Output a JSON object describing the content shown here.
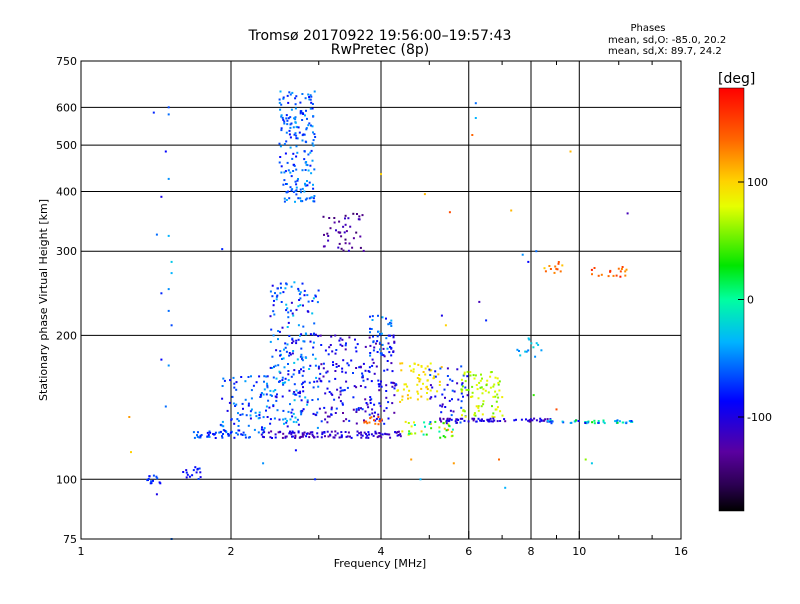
{
  "chart_data": {
    "type": "scatter",
    "title": "Tromsø 20170922 19:56:00–19:57:43",
    "subtitle": "RwPretec (8p)",
    "xlabel": "Frequency [MHz]",
    "ylabel": "Stationary phase Virtual Height [km]",
    "x_scale": "log",
    "y_scale": "log",
    "xlim": [
      1,
      16
    ],
    "ylim": [
      75,
      750
    ],
    "x_ticks": [
      1,
      2,
      4,
      6,
      8,
      10,
      16
    ],
    "x_tick_labels": [
      "1",
      "2",
      "4",
      "6",
      "8",
      "10",
      "16"
    ],
    "x_minor_ticks": [
      3,
      5,
      7,
      9,
      12,
      14
    ],
    "y_ticks": [
      75,
      100,
      200,
      300,
      400,
      500,
      600,
      750
    ],
    "y_tick_labels": [
      "75",
      "100",
      "200",
      "300",
      "400",
      "500",
      "600",
      "750"
    ],
    "grid": true,
    "phase_info": {
      "heading": "Phases",
      "line_o": "mean, sd,O: -85.0, 20.2",
      "line_x": "mean, sd,X:  89.7, 24.2"
    },
    "colorbar": {
      "unit": "[deg]",
      "tick_values": [
        100,
        0,
        -100
      ],
      "tick_labels": [
        "100",
        "0",
        "-100"
      ],
      "range": [
        -180,
        180
      ],
      "colormap": "rainbow (black-purple-blue-cyan-green-yellow-red)"
    },
    "clusters": [
      {
        "x": [
          1.35,
          1.45
        ],
        "y": [
          98,
          102
        ],
        "phase": [
          -100,
          -60
        ],
        "n": 14
      },
      {
        "x": [
          1.6,
          1.75
        ],
        "y": [
          100,
          106
        ],
        "phase": [
          -100,
          -70
        ],
        "n": 16
      },
      {
        "x": [
          1.65,
          2.2
        ],
        "y": [
          122,
          126
        ],
        "phase": [
          -90,
          -50
        ],
        "n": 45
      },
      {
        "x": [
          1.9,
          2.4
        ],
        "y": [
          125,
          165
        ],
        "phase": [
          -100,
          -40
        ],
        "n": 90
      },
      {
        "x": [
          2.4,
          3.0
        ],
        "y": [
          128,
          260
        ],
        "phase": [
          -110,
          -30
        ],
        "n": 230
      },
      {
        "x": [
          2.5,
          2.95
        ],
        "y": [
          380,
          650
        ],
        "phase": [
          -90,
          -40
        ],
        "n": 190
      },
      {
        "x": [
          2.3,
          4.4
        ],
        "y": [
          122,
          126
        ],
        "phase": [
          -130,
          -90
        ],
        "n": 120
      },
      {
        "x": [
          3.0,
          4.3
        ],
        "y": [
          130,
          200
        ],
        "phase": [
          -130,
          -70
        ],
        "n": 200
      },
      {
        "x": [
          3.05,
          3.7
        ],
        "y": [
          300,
          360
        ],
        "phase": [
          -150,
          -110
        ],
        "n": 45
      },
      {
        "x": [
          3.8,
          4.2
        ],
        "y": [
          180,
          220
        ],
        "phase": [
          -90,
          -40
        ],
        "n": 40
      },
      {
        "x": [
          3.7,
          4.1
        ],
        "y": [
          130,
          135
        ],
        "phase": [
          130,
          160
        ],
        "n": 14
      },
      {
        "x": [
          4.3,
          5.3
        ],
        "y": [
          145,
          175
        ],
        "phase": [
          80,
          110
        ],
        "n": 60
      },
      {
        "x": [
          4.4,
          5.6
        ],
        "y": [
          122,
          132
        ],
        "phase": [
          -20,
          120
        ],
        "n": 40
      },
      {
        "x": [
          5.0,
          6.0
        ],
        "y": [
          130,
          175
        ],
        "phase": [
          -120,
          -60
        ],
        "n": 50
      },
      {
        "x": [
          5.8,
          7.1
        ],
        "y": [
          135,
          168
        ],
        "phase": [
          50,
          90
        ],
        "n": 80
      },
      {
        "x": [
          5.2,
          8.8
        ],
        "y": [
          132,
          134
        ],
        "phase": [
          -130,
          -90
        ],
        "n": 70
      },
      {
        "x": [
          8.6,
          12.8
        ],
        "y": [
          131,
          133
        ],
        "phase": [
          -100,
          30
        ],
        "n": 45
      },
      {
        "x": [
          8.5,
          9.3
        ],
        "y": [
          270,
          285
        ],
        "phase": [
          100,
          160
        ],
        "n": 12
      },
      {
        "x": [
          10.5,
          12.5
        ],
        "y": [
          265,
          280
        ],
        "phase": [
          120,
          170
        ],
        "n": 18
      },
      {
        "x": [
          7.5,
          8.4
        ],
        "y": [
          180,
          200
        ],
        "phase": [
          -60,
          -20
        ],
        "n": 14
      }
    ],
    "points": [
      {
        "x": 1.4,
        "y": 585,
        "phase": -80
      },
      {
        "x": 1.5,
        "y": 580,
        "phase": -60
      },
      {
        "x": 1.5,
        "y": 600,
        "phase": -70
      },
      {
        "x": 1.48,
        "y": 485,
        "phase": -90
      },
      {
        "x": 1.5,
        "y": 425,
        "phase": -50
      },
      {
        "x": 1.45,
        "y": 390,
        "phase": -100
      },
      {
        "x": 1.42,
        "y": 325,
        "phase": -60
      },
      {
        "x": 1.5,
        "y": 323,
        "phase": -40
      },
      {
        "x": 1.52,
        "y": 285,
        "phase": -30
      },
      {
        "x": 1.52,
        "y": 270,
        "phase": -40
      },
      {
        "x": 1.5,
        "y": 250,
        "phase": -50
      },
      {
        "x": 1.45,
        "y": 245,
        "phase": -80
      },
      {
        "x": 1.5,
        "y": 225,
        "phase": -60
      },
      {
        "x": 1.52,
        "y": 210,
        "phase": -70
      },
      {
        "x": 1.5,
        "y": 173,
        "phase": -50
      },
      {
        "x": 1.45,
        "y": 178,
        "phase": -90
      },
      {
        "x": 1.48,
        "y": 142,
        "phase": -60
      },
      {
        "x": 1.52,
        "y": 75,
        "phase": -60
      },
      {
        "x": 1.42,
        "y": 93,
        "phase": -100
      },
      {
        "x": 1.25,
        "y": 135,
        "phase": 120
      },
      {
        "x": 1.26,
        "y": 114,
        "phase": 100
      },
      {
        "x": 1.92,
        "y": 303,
        "phase": -80
      },
      {
        "x": 2.32,
        "y": 108,
        "phase": -50
      },
      {
        "x": 2.95,
        "y": 100,
        "phase": -80
      },
      {
        "x": 2.7,
        "y": 115,
        "phase": -90
      },
      {
        "x": 4.0,
        "y": 435,
        "phase": 100
      },
      {
        "x": 4.9,
        "y": 395,
        "phase": 110
      },
      {
        "x": 5.5,
        "y": 362,
        "phase": 150
      },
      {
        "x": 6.2,
        "y": 612,
        "phase": -60
      },
      {
        "x": 6.1,
        "y": 525,
        "phase": 140
      },
      {
        "x": 6.2,
        "y": 570,
        "phase": -40
      },
      {
        "x": 7.3,
        "y": 365,
        "phase": 110
      },
      {
        "x": 9.6,
        "y": 485,
        "phase": 110
      },
      {
        "x": 12.5,
        "y": 360,
        "phase": -120
      },
      {
        "x": 7.9,
        "y": 285,
        "phase": -90
      },
      {
        "x": 8.2,
        "y": 300,
        "phase": -60
      },
      {
        "x": 7.7,
        "y": 295,
        "phase": -50
      },
      {
        "x": 6.9,
        "y": 110,
        "phase": 140
      },
      {
        "x": 7.1,
        "y": 96,
        "phase": -40
      },
      {
        "x": 8.1,
        "y": 150,
        "phase": 40
      },
      {
        "x": 10.3,
        "y": 110,
        "phase": 60
      },
      {
        "x": 10.6,
        "y": 108,
        "phase": -30
      },
      {
        "x": 4.6,
        "y": 110,
        "phase": 120
      },
      {
        "x": 4.8,
        "y": 100,
        "phase": -40
      },
      {
        "x": 5.6,
        "y": 108,
        "phase": 120
      },
      {
        "x": 6.3,
        "y": 235,
        "phase": -120
      },
      {
        "x": 5.3,
        "y": 220,
        "phase": -100
      },
      {
        "x": 6.5,
        "y": 215,
        "phase": -80
      },
      {
        "x": 5.4,
        "y": 210,
        "phase": 100
      },
      {
        "x": 9.0,
        "y": 140,
        "phase": 150
      }
    ]
  }
}
